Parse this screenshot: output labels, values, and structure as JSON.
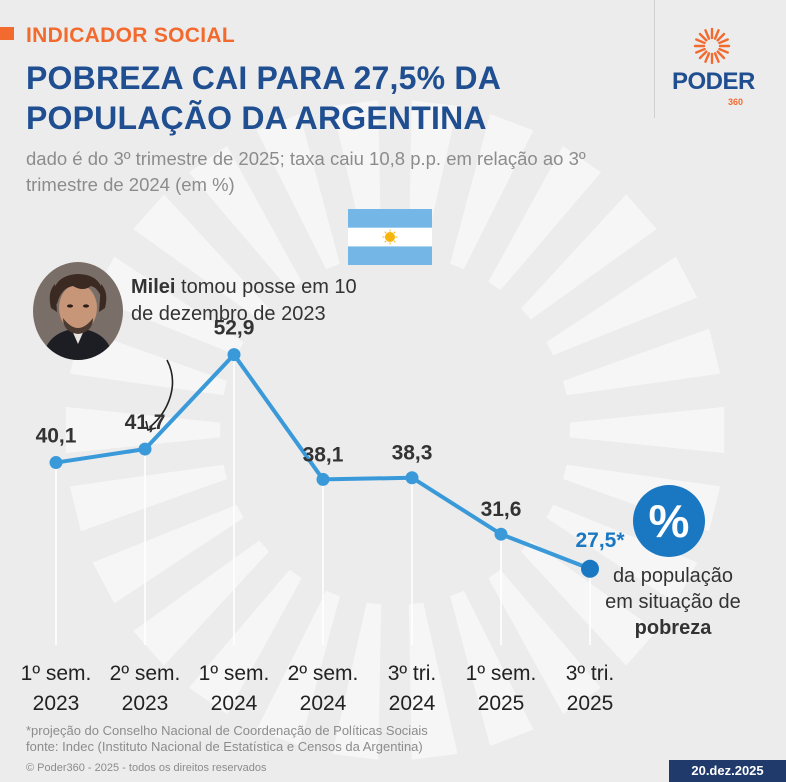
{
  "header": {
    "kicker": "INDICADOR SOCIAL",
    "title": "POBREZA CAI PARA 27,5% DA POPULAÇÃO DA ARGENTINA",
    "subtitle": "dado é do 3º trimestre de 2025; taxa caiu 10,8 p.p. em relação ao 3º trimestre de 2024 (em %)"
  },
  "brand": {
    "name": "PODER",
    "number": "360",
    "colors": {
      "blue": "#1f4e91",
      "orange": "#f26a2e",
      "line": "#3a9ad9",
      "highlight": "#1a78c2"
    }
  },
  "flag_icon": "argentina-flag-icon",
  "annotation": {
    "name": "Milei",
    "text": "tomou posse em 10 de dezembro de 2023"
  },
  "chart_data": {
    "type": "line",
    "categories": [
      "1º sem. 2023",
      "2º sem. 2023",
      "1º sem. 2024",
      "2º sem. 2024",
      "3º tri. 2024",
      "1º sem. 2025",
      "3º tri. 2025"
    ],
    "category_lines": [
      [
        "1º sem.",
        "2023"
      ],
      [
        "2º sem.",
        "2023"
      ],
      [
        "1º sem.",
        "2024"
      ],
      [
        "2º sem.",
        "2024"
      ],
      [
        "3º tri.",
        "2024"
      ],
      [
        "1º sem.",
        "2025"
      ],
      [
        "3º tri.",
        "2025"
      ]
    ],
    "values": [
      40.1,
      41.7,
      52.9,
      38.1,
      38.3,
      31.6,
      27.5
    ],
    "value_labels": [
      "40,1",
      "41,7",
      "52,9",
      "38,1",
      "38,3",
      "31,6",
      "27,5*"
    ],
    "highlight_index": 6,
    "ylim": [
      20,
      60
    ],
    "grid": "vertical"
  },
  "highlight": {
    "symbol": "%",
    "caption_line1": "da população",
    "caption_line2": "em situação de",
    "caption_strong": "pobreza"
  },
  "footnotes": {
    "note": "*projeção do Conselho Nacional de Coordenação de Políticas Sociais",
    "source": "fonte: Indec (Instituto Nacional de Estatística e Censos da Argentina)"
  },
  "copyright": "© Poder360 - 2025 - todos os direitos reservados",
  "date": "20.dez.2025"
}
